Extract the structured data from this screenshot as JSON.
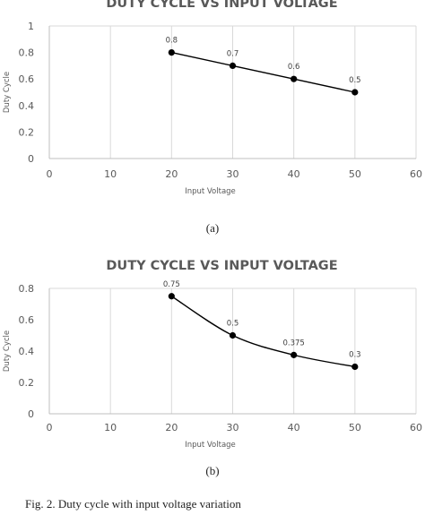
{
  "chart_data": [
    {
      "type": "line",
      "title": "DUTY CYCLE VS INPUT VOLTAGE",
      "xlabel": "Input Voltage",
      "ylabel": "Duty Cycle",
      "x": [
        20,
        30,
        40,
        50
      ],
      "series": [
        {
          "values": [
            0.8,
            0.7,
            0.6,
            0.5
          ],
          "data_labels": [
            "0.8",
            "0.7",
            "0.6",
            "0.5"
          ]
        }
      ],
      "xlim": [
        0,
        60
      ],
      "ylim": [
        0,
        1
      ],
      "xticks": [
        "0",
        "10",
        "20",
        "30",
        "40",
        "50",
        "60"
      ],
      "yticks": [
        "0",
        "0.2",
        "0.4",
        "0.6",
        "0.8",
        "1"
      ],
      "grid": "vertical",
      "legend": "none"
    },
    {
      "type": "line",
      "title": "DUTY CYCLE VS INPUT VOLTAGE",
      "xlabel": "Input Voltage",
      "ylabel": "Duty Cycle",
      "x": [
        20,
        30,
        40,
        50
      ],
      "series": [
        {
          "values": [
            0.75,
            0.5,
            0.375,
            0.3
          ],
          "data_labels": [
            "0.75",
            "0.5",
            "0.375",
            "0.3"
          ]
        }
      ],
      "xlim": [
        0,
        60
      ],
      "ylim": [
        0,
        0.8
      ],
      "xticks": [
        "0",
        "10",
        "20",
        "30",
        "40",
        "50",
        "60"
      ],
      "yticks": [
        "0",
        "0.2",
        "0.4",
        "0.6",
        "0.8"
      ],
      "grid": "vertical",
      "legend": "none"
    }
  ],
  "captions": {
    "a": "(a)",
    "b": "(b)",
    "figure": "Fig. 2. Duty cycle with input voltage variation"
  },
  "colors": {
    "line": "#000000",
    "grid": "#d9d9d9",
    "axis": "#bfbfbf",
    "text": "#595959"
  }
}
